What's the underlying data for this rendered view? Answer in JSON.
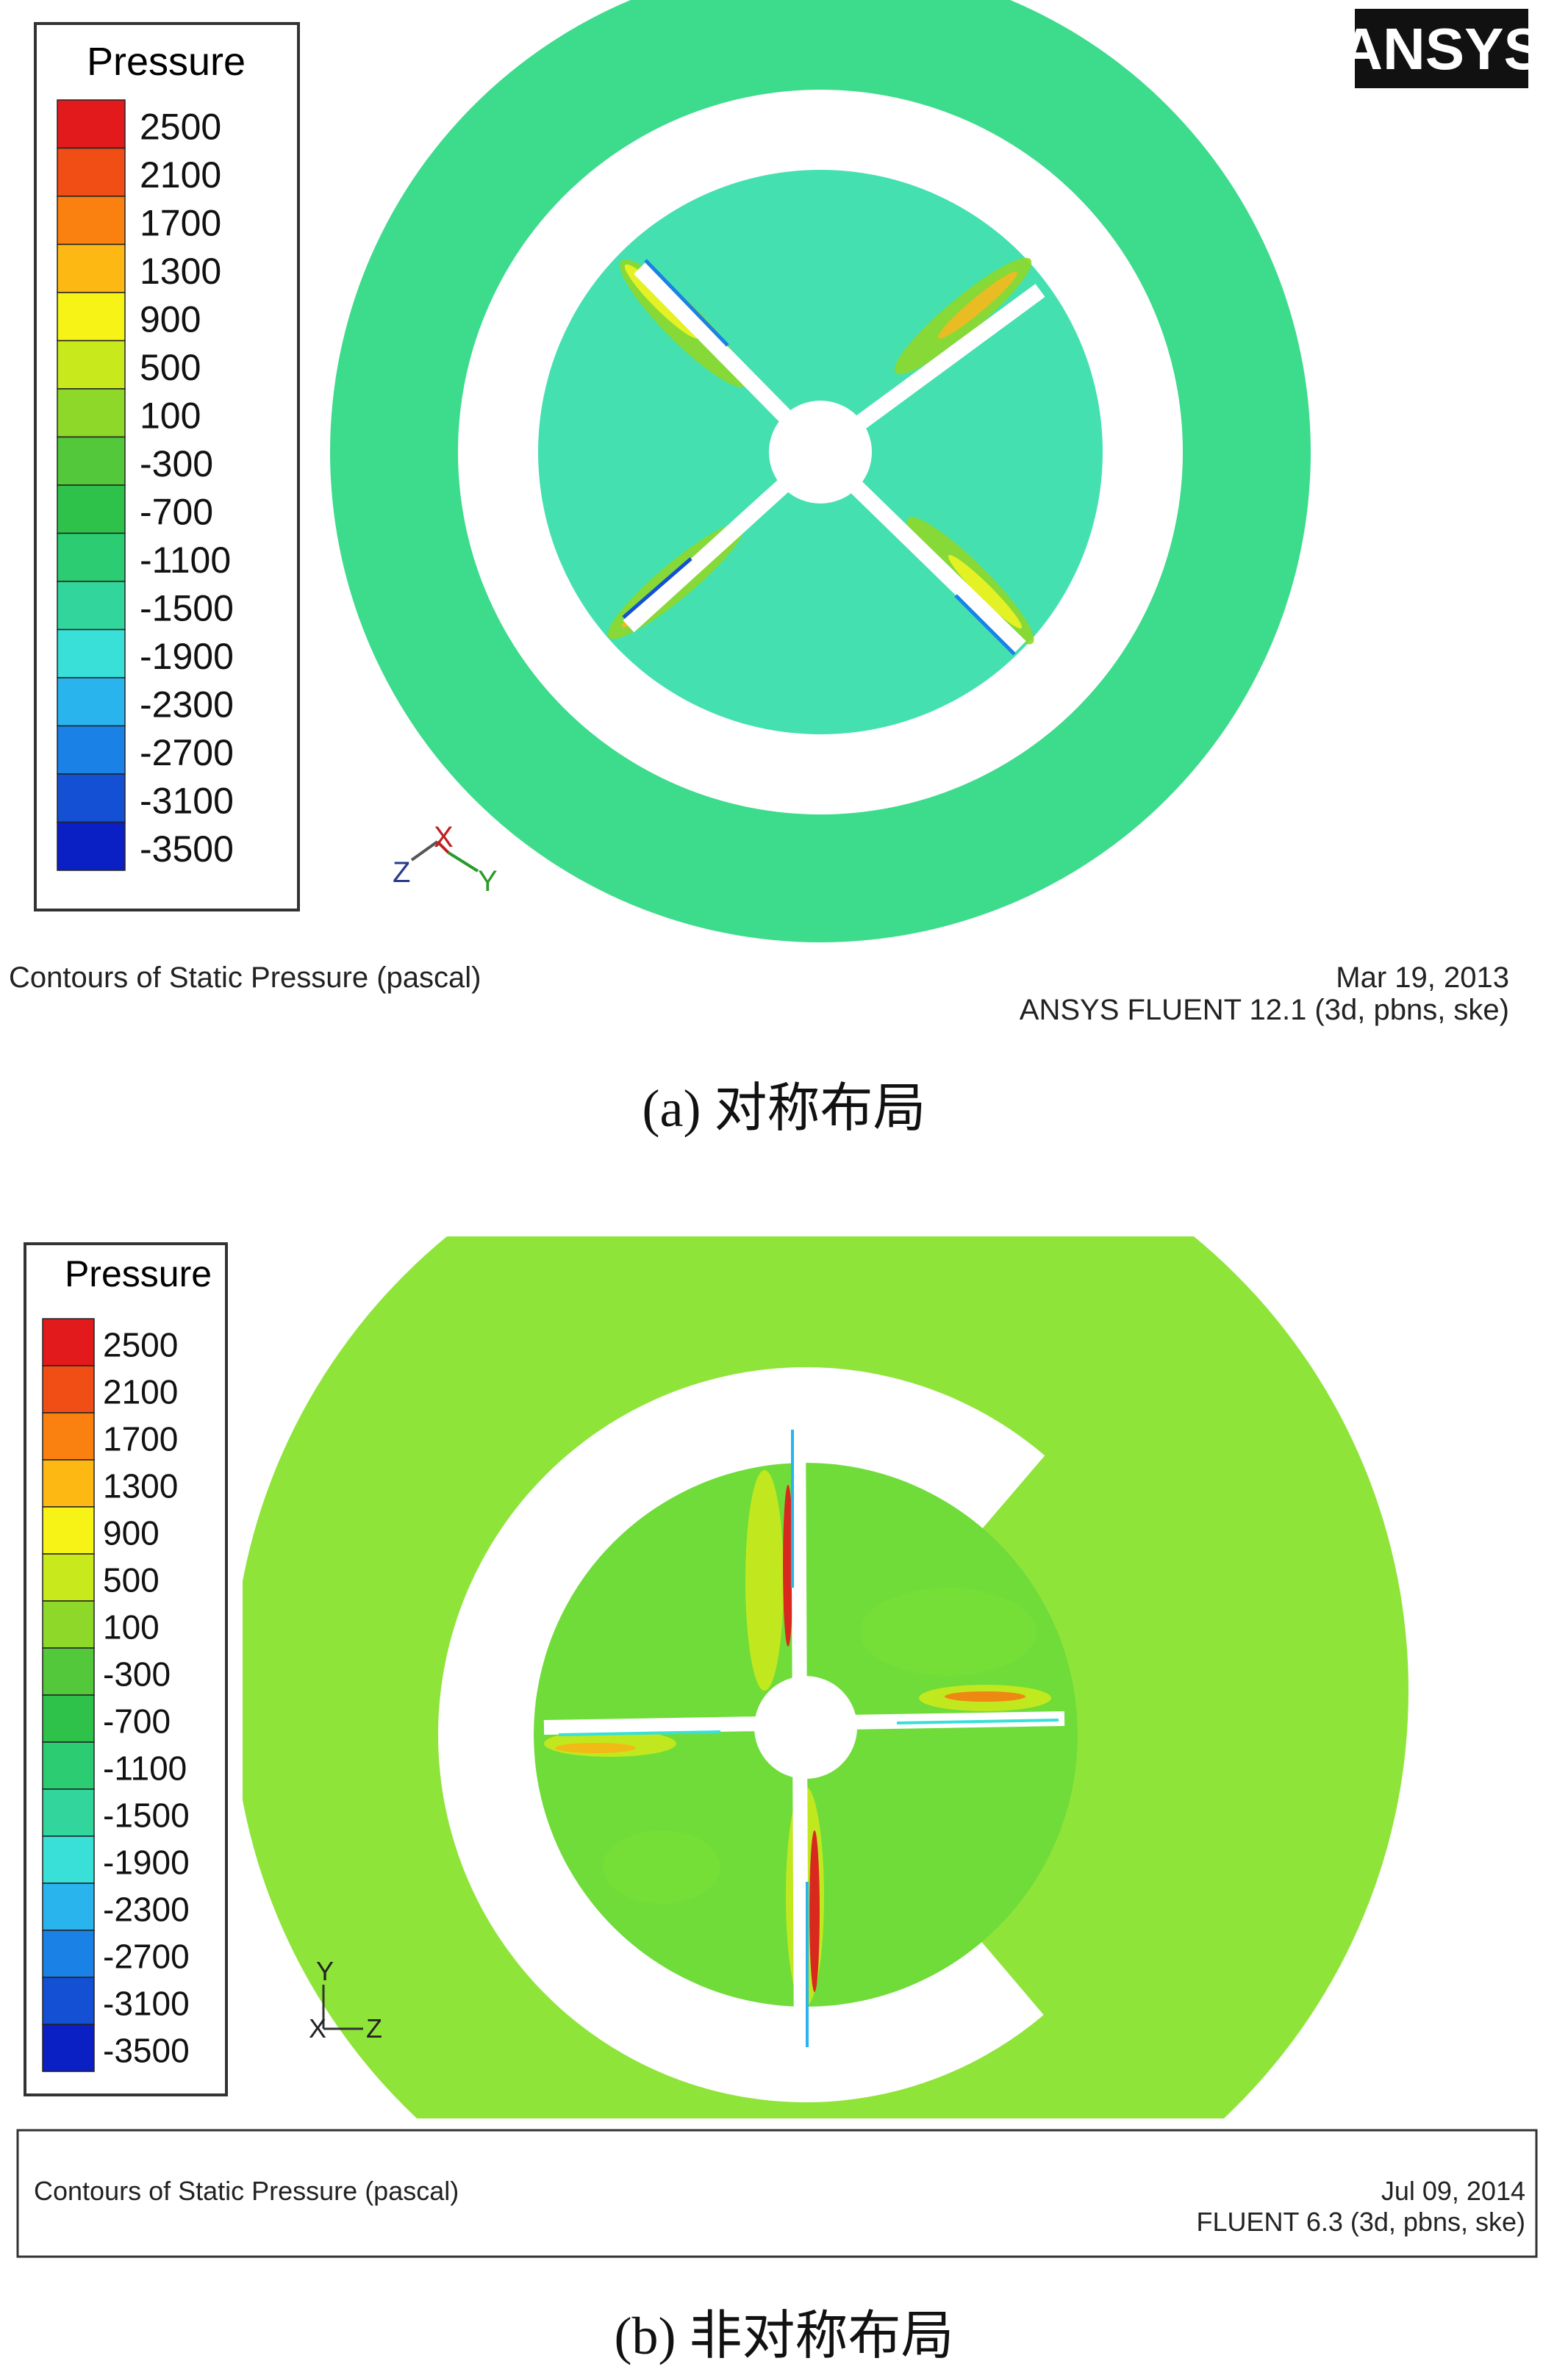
{
  "panel_a": {
    "legend": {
      "title": "Pressure",
      "labels": [
        "2500",
        "2100",
        "1700",
        "1300",
        "900",
        "500",
        "100",
        "-300",
        "-700",
        "-1100",
        "-1500",
        "-1900",
        "-2300",
        "-2700",
        "-3100",
        "-3500"
      ],
      "colors": [
        "#e31a1c",
        "#f04e14",
        "#fa8010",
        "#fdb813",
        "#f7f316",
        "#c8ea1c",
        "#8ed82a",
        "#52c83a",
        "#2fc24a",
        "#2ccc72",
        "#32d69c",
        "#38e0d8",
        "#2ab4ee",
        "#1a82e6",
        "#1450d4",
        "#0a1fc4"
      ]
    },
    "logo": "ANSYS",
    "axes": {
      "z": "Z",
      "x": "X",
      "y": "Y"
    },
    "footer_left": "Contours of Static Pressure (pascal)",
    "footer_right_line1": "Mar 19, 2013",
    "footer_right_line2": "ANSYS FLUENT 12.1 (3d, pbns, ske)",
    "caption": "(a) 对称布局",
    "colors": {
      "outer_ring": "#3ddb8c",
      "inner_disc": "#45e0b0"
    }
  },
  "panel_b": {
    "legend": {
      "title": "Pressure",
      "labels": [
        "2500",
        "2100",
        "1700",
        "1300",
        "900",
        "500",
        "100",
        "-300",
        "-700",
        "-1100",
        "-1500",
        "-1900",
        "-2300",
        "-2700",
        "-3100",
        "-3500"
      ],
      "colors": [
        "#e31a1c",
        "#f04e14",
        "#fa8010",
        "#fdb813",
        "#f7f316",
        "#c8ea1c",
        "#8ed82a",
        "#52c83a",
        "#2fc24a",
        "#2ccc72",
        "#32d69c",
        "#38e0d8",
        "#2ab4ee",
        "#1a82e6",
        "#1450d4",
        "#0a1fc4"
      ]
    },
    "axes": {
      "y": "Y",
      "x": "X",
      "z": "Z"
    },
    "footer_left": "Contours of Static Pressure (pascal)",
    "footer_right_line1": "Jul 09, 2014",
    "footer_right_line2": "FLUENT 6.3 (3d, pbns, ske)",
    "caption": "(b) 非对称布局",
    "colors": {
      "outer_field": "#8fe43a",
      "inner_disc": "#6fdc3a"
    }
  }
}
